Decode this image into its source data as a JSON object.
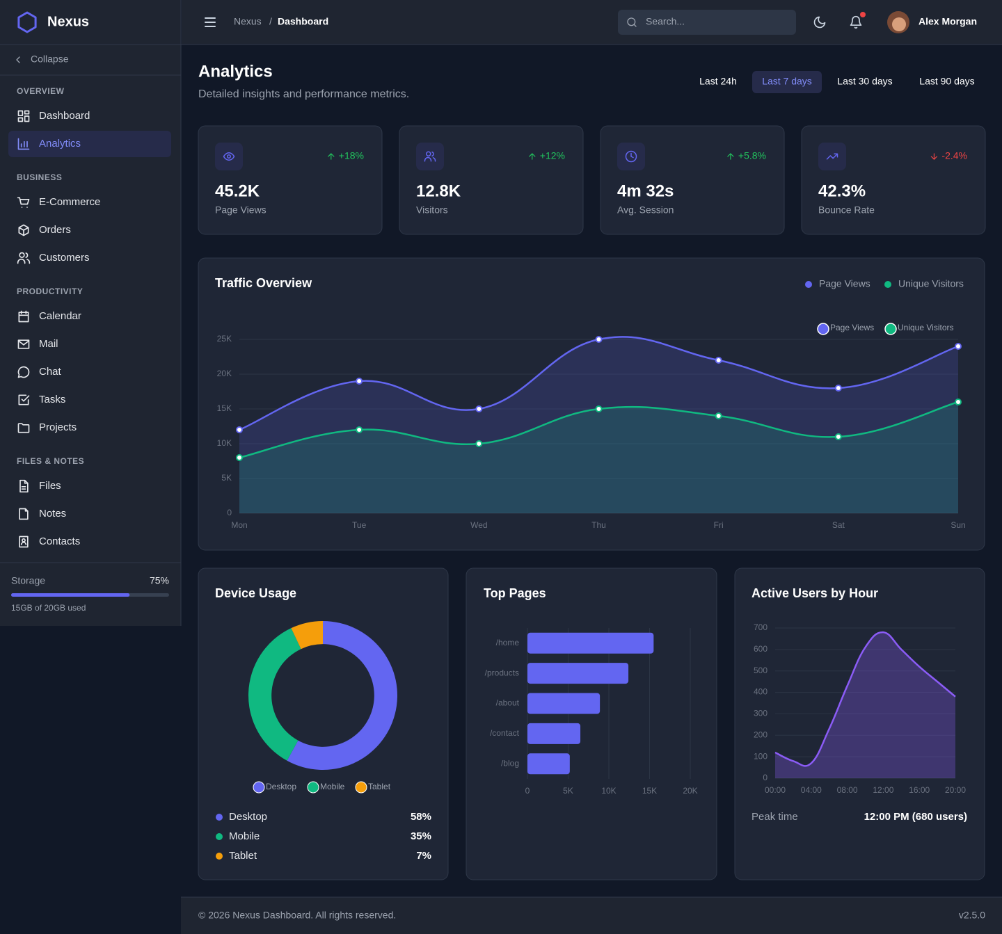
{
  "brand": "Nexus",
  "sidebar": {
    "collapse": "Collapse",
    "sections": [
      {
        "title": "OVERVIEW",
        "items": [
          {
            "label": "Dashboard"
          },
          {
            "label": "Analytics",
            "active": true
          }
        ]
      },
      {
        "title": "BUSINESS",
        "items": [
          {
            "label": "E-Commerce"
          },
          {
            "label": "Orders"
          },
          {
            "label": "Customers"
          }
        ]
      },
      {
        "title": "PRODUCTIVITY",
        "items": [
          {
            "label": "Calendar"
          },
          {
            "label": "Mail"
          },
          {
            "label": "Chat"
          },
          {
            "label": "Tasks"
          },
          {
            "label": "Projects"
          }
        ]
      },
      {
        "title": "FILES & NOTES",
        "items": [
          {
            "label": "Files"
          },
          {
            "label": "Notes"
          },
          {
            "label": "Contacts"
          }
        ]
      }
    ],
    "storage": {
      "label": "Storage",
      "percent": {
        "value": 75,
        "label": "75%"
      },
      "detail": "15GB of 20GB used"
    }
  },
  "topbar": {
    "breadcrumb": [
      "Nexus",
      "Dashboard"
    ],
    "separator": "/",
    "search_placeholder": "Search...",
    "user": "Alex Morgan"
  },
  "header": {
    "title": "Analytics",
    "subtitle": "Detailed insights and performance metrics.",
    "ranges": [
      {
        "label": "Last 24h"
      },
      {
        "label": "Last 7 days",
        "active": true
      },
      {
        "label": "Last 30 days"
      },
      {
        "label": "Last 90 days"
      }
    ]
  },
  "stats": [
    {
      "value": "45.2K",
      "label": "Page Views",
      "change": "+18%",
      "trend": "up"
    },
    {
      "value": "12.8K",
      "label": "Visitors",
      "change": "+12%",
      "trend": "up"
    },
    {
      "value": "4m 32s",
      "label": "Avg. Session",
      "change": "+5.8%",
      "trend": "up"
    },
    {
      "value": "42.3%",
      "label": "Bounce Rate",
      "change": "-2.4%",
      "trend": "down"
    }
  ],
  "chart_data": [
    {
      "type": "line",
      "title": "Traffic Overview",
      "categories": [
        "Mon",
        "Tue",
        "Wed",
        "Thu",
        "Fri",
        "Sat",
        "Sun"
      ],
      "series": [
        {
          "name": "Page Views",
          "color": "#6366f1",
          "values": [
            12000,
            19000,
            15000,
            25000,
            22000,
            18000,
            24000
          ]
        },
        {
          "name": "Unique Visitors",
          "color": "#10b981",
          "values": [
            8000,
            12000,
            10000,
            15000,
            14000,
            11000,
            16000
          ]
        }
      ],
      "ylim": [
        0,
        25000
      ],
      "yticks": [
        0,
        {
          "value": 5000,
          "label": "5K"
        },
        {
          "value": 10000,
          "label": "10K"
        },
        {
          "value": 15000,
          "label": "15K"
        },
        {
          "value": 20000,
          "label": "20K"
        },
        {
          "value": 25000,
          "label": "25K"
        }
      ],
      "grid": true,
      "fill": true,
      "points": true
    },
    {
      "type": "doughnut",
      "title": "Device Usage",
      "categories": [
        "Desktop",
        "Mobile",
        "Tablet"
      ],
      "values": [
        58,
        35,
        7
      ],
      "value_labels": [
        "58%",
        "35%",
        "7%"
      ],
      "colors": [
        "#6366f1",
        "#10b981",
        "#f59e0b"
      ]
    },
    {
      "type": "bar",
      "orientation": "horizontal",
      "title": "Top Pages",
      "categories": [
        "/home",
        "/products",
        "/about",
        "/contact",
        "/blog"
      ],
      "values": [
        15500,
        12400,
        8900,
        6500,
        5200
      ],
      "color": "#6366f1",
      "xlim": [
        0,
        20000
      ],
      "xticks": [
        0,
        {
          "value": 5000,
          "label": "5K"
        },
        {
          "value": 10000,
          "label": "10K"
        },
        {
          "value": 15000,
          "label": "15K"
        },
        {
          "value": 20000,
          "label": "20K"
        }
      ],
      "grid": true
    },
    {
      "type": "line",
      "title": "Active Users by Hour",
      "categories": [
        "00:00",
        null,
        "04:00",
        null,
        "08:00",
        null,
        "12:00",
        null,
        "16:00",
        null,
        "20:00"
      ],
      "values": [
        120,
        80,
        70,
        230,
        430,
        610,
        680,
        600,
        520,
        450,
        380
      ],
      "color": "#8b5cf6",
      "ylim": [
        0,
        700
      ],
      "yticks": [
        0,
        100,
        200,
        300,
        400,
        500,
        600,
        700
      ],
      "grid": true,
      "fill": true,
      "points": false
    }
  ],
  "peak": {
    "label": "Peak time",
    "value": "12:00 PM (680 users)"
  },
  "footer": {
    "copyright": "© 2026 Nexus Dashboard. All rights reserved.",
    "version": "v2.5.0"
  }
}
